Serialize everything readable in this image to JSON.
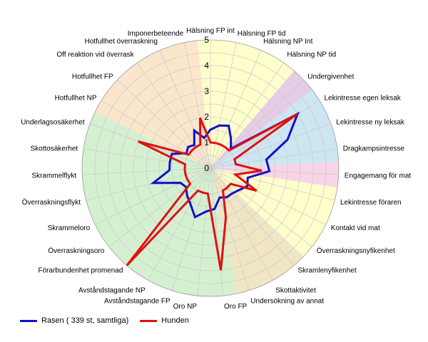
{
  "chart_data": {
    "type": "radar",
    "title": "",
    "rlim": [
      0,
      5
    ],
    "ticks": [
      "0",
      "1",
      "2",
      "3",
      "4",
      "5"
    ],
    "grid": true,
    "legend_position": "bottom-left",
    "categories": [
      "Hälsning FP int",
      "Hälsning FP tid",
      "Hälsning NP Int",
      "Hälsning NP tid",
      "Undergivenhet",
      "Lekintresse egen leksak",
      "Lekintresse ny leksak",
      "Dragkampsintresse",
      "Engagemang för mat",
      "Lekintresse föraren",
      "Kontakt vid mat",
      "Överraskningsnyfikenhet",
      "Skramlenyfikenhet",
      "Skottaktivitet",
      "Undersökning av annat",
      "Oro FP",
      "Oro NP",
      "Avståndstagande FP",
      "Avståndstagande NP",
      "Förarbundenhet promenad",
      "Överraskningsoro",
      "Skrammeloro",
      "Överraskningsflykt",
      "Skrammelflykt",
      "Skottosäkerhet",
      "Underlagsosäkerhet",
      "Hotfullhet NP",
      "Hotfullhet FP",
      "Off reaktion vid överrask",
      "Hotfullhet överraskning",
      "Imponerbeteende"
    ],
    "sectors": [
      {
        "from": -0.5,
        "to": 3.5,
        "color": "#ffffcc"
      },
      {
        "from": 3.5,
        "to": 4.5,
        "color": "#e6cce6"
      },
      {
        "from": 4.5,
        "to": 7.5,
        "color": "#cce6f2"
      },
      {
        "from": 7.5,
        "to": 8.5,
        "color": "#f7d5e6"
      },
      {
        "from": 8.5,
        "to": 11.5,
        "color": "#ffffcc"
      },
      {
        "from": 11.5,
        "to": 14.5,
        "color": "#f0e6c4"
      },
      {
        "from": 14.5,
        "to": 25.5,
        "color": "#d4f0d0"
      },
      {
        "from": 25.5,
        "to": 30.5,
        "color": "#fbe6cc"
      }
    ],
    "series": [
      {
        "name": "Rasen ( 339 st, samtliga)",
        "color": "#1010c8",
        "values": [
          1.5,
          1.7,
          1.8,
          1.4,
          1.1,
          4.0,
          3.2,
          2.2,
          2.3,
          1.5,
          1.6,
          1.4,
          1.3,
          1.3,
          1.2,
          1.6,
          1.7,
          2.0,
          1.6,
          1.4,
          1.2,
          1.3,
          2.3,
          1.6,
          1.6,
          1.6,
          1.1,
          1.2,
          1.1,
          1.6,
          1.2
        ]
      },
      {
        "name": "Hunden",
        "color": "#e01010",
        "values": [
          1.0,
          1.0,
          1.0,
          1.0,
          1.0,
          4.0,
          1.0,
          1.0,
          2.0,
          1.0,
          2.0,
          1.0,
          1.0,
          1.0,
          2.0,
          4.0,
          1.0,
          1.0,
          1.0,
          5.0,
          1.0,
          1.0,
          1.0,
          1.0,
          1.0,
          3.0,
          1.0,
          1.0,
          1.0,
          1.0,
          2.0
        ]
      }
    ]
  }
}
